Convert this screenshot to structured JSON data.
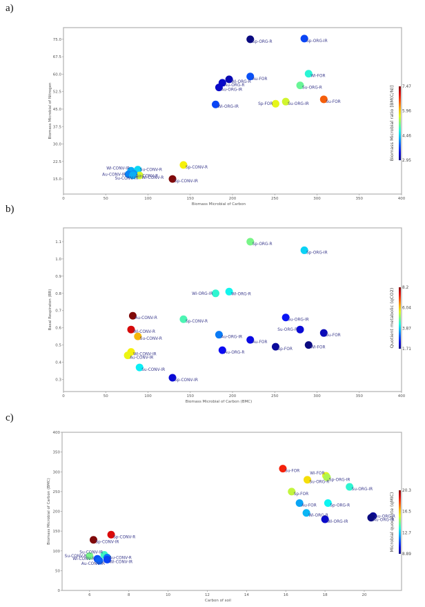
{
  "panels": [
    {
      "label": "a)"
    },
    {
      "label": "b)"
    },
    {
      "label": "c)"
    }
  ],
  "chart_data": [
    {
      "type": "scatter",
      "title": "",
      "xlabel": "Biomass Microbial of Carbon",
      "ylabel": "Biomass Microbial of Nitrogen",
      "xlim": [
        0,
        400
      ],
      "ylim": [
        8.5,
        80
      ],
      "xticks": [
        0,
        50,
        100,
        150,
        200,
        250,
        300,
        350,
        400
      ],
      "yticks": [
        15.0,
        22.5,
        30.0,
        37.5,
        45.0,
        52.5,
        60.0,
        67.5,
        75.0
      ],
      "ytick_labels": [
        "15.0",
        "22.5",
        "30.0",
        "37.5",
        "45.0",
        "52.5",
        "60.0",
        "67.5",
        "75.0"
      ],
      "grid": false,
      "colorbar": {
        "title": "Biomass Microbial ratio [BM(C/N)]",
        "min": 2.95,
        "max": 7.47,
        "ticks": [
          "2.95",
          "4.46",
          "5.96",
          "7.47"
        ],
        "colormap": "jet"
      },
      "points": [
        {
          "label": "Sp-ORG-R",
          "x": 221,
          "y": 75.0,
          "c": 2.95,
          "pos": "right-below"
        },
        {
          "label": "Sp-ORG-IR",
          "x": 285,
          "y": 75.3,
          "c": 3.8,
          "pos": "right-below"
        },
        {
          "label": "Wi-FOR",
          "x": 290,
          "y": 60.2,
          "c": 4.8,
          "pos": "right-below"
        },
        {
          "label": "Au-FOR",
          "x": 221,
          "y": 59.0,
          "c": 3.85,
          "pos": "right-below"
        },
        {
          "label": "Wi-ORG-R",
          "x": 196,
          "y": 57.8,
          "c": 3.2,
          "pos": "right-below"
        },
        {
          "label": "Au-ORG-R",
          "x": 188,
          "y": 56.3,
          "c": 3.3,
          "pos": "right-below"
        },
        {
          "label": "Au-ORG-IR",
          "x": 184,
          "y": 54.3,
          "c": 3.3,
          "pos": "right-below"
        },
        {
          "label": "Su-ORG-R",
          "x": 280,
          "y": 55.2,
          "c": 5.1,
          "pos": "right-below"
        },
        {
          "label": "Su-FOR",
          "x": 308,
          "y": 49.2,
          "c": 6.5,
          "pos": "right-below"
        },
        {
          "label": "Su-ORG-IR",
          "x": 263,
          "y": 48.2,
          "c": 5.6,
          "pos": "right-below"
        },
        {
          "label": "Sp-FOR",
          "x": 251,
          "y": 47.3,
          "c": 5.7,
          "pos": "left"
        },
        {
          "label": "Wi-ORG-IR",
          "x": 180,
          "y": 47.0,
          "c": 3.8,
          "pos": "right-below"
        },
        {
          "label": "Sp-CONV-R",
          "x": 142,
          "y": 21.0,
          "c": 5.8,
          "pos": "right-below"
        },
        {
          "label": "Wi-CONV-IR",
          "x": 80,
          "y": 18.5,
          "c": 4.3,
          "pos": "left-above"
        },
        {
          "label": "Su-CONV-R",
          "x": 88,
          "y": 19.0,
          "c": 4.5,
          "pos": "right"
        },
        {
          "label": "Au-CONV-IR",
          "x": 77,
          "y": 17.0,
          "c": 4.1,
          "pos": "left"
        },
        {
          "label": "Wi-CONV-R",
          "x": 90,
          "y": 16.5,
          "c": 5.6,
          "pos": "right-below"
        },
        {
          "label": "Au-CONV-R",
          "x": 83,
          "y": 17.3,
          "c": 4.2,
          "pos": "right-below"
        },
        {
          "label": "Su-CONV-IR",
          "x": 82,
          "y": 16.5,
          "c": 4.3,
          "pos": "left-below"
        },
        {
          "label": "Sp-CONV-IR",
          "x": 129,
          "y": 15.0,
          "c": 7.47,
          "pos": "right-below"
        }
      ]
    },
    {
      "type": "scatter",
      "title": "",
      "xlabel": "Biomass Microbial of Carbon (BMC)",
      "ylabel": "Basal Respiraton (BR)",
      "xlim": [
        0,
        400
      ],
      "ylim": [
        0.23,
        1.18
      ],
      "xticks": [
        0,
        50,
        100,
        150,
        200,
        250,
        300,
        350,
        400
      ],
      "yticks": [
        0.3,
        0.4,
        0.5,
        0.6,
        0.7,
        0.8,
        0.9,
        1.0,
        1.1
      ],
      "ytick_labels": [
        "0.3",
        "0.4",
        "0.5",
        "0.6",
        "0.7",
        "0.8",
        "0.9",
        "1.0",
        "1.1"
      ],
      "grid": false,
      "colorbar": {
        "title": "Quotient metabolic (qCO2)",
        "min": 1.71,
        "max": 8.2,
        "ticks": [
          "1.71",
          "3.87",
          "6.04",
          "8.2"
        ],
        "colormap": "jet"
      },
      "points": [
        {
          "label": "Sp-ORG-R",
          "x": 221,
          "y": 1.1,
          "c": 4.9,
          "pos": "right-below"
        },
        {
          "label": "Sp-ORG-IR",
          "x": 285,
          "y": 1.05,
          "c": 3.9,
          "pos": "right-below"
        },
        {
          "label": "Wi-ORG-IR",
          "x": 180,
          "y": 0.8,
          "c": 4.4,
          "pos": "left"
        },
        {
          "label": "Wi-ORG-R",
          "x": 196,
          "y": 0.81,
          "c": 4.2,
          "pos": "right-below"
        },
        {
          "label": "Au-CONV-R",
          "x": 82,
          "y": 0.67,
          "c": 8.2,
          "pos": "right-below"
        },
        {
          "label": "Sp-CONV-R",
          "x": 142,
          "y": 0.65,
          "c": 4.6,
          "pos": "right-below"
        },
        {
          "label": "Su-ORG-IR",
          "x": 263,
          "y": 0.66,
          "c": 2.6,
          "pos": "right-below"
        },
        {
          "label": "Wi-CONV-R",
          "x": 80,
          "y": 0.59,
          "c": 7.6,
          "pos": "right-below"
        },
        {
          "label": "Su-ORG-R",
          "x": 280,
          "y": 0.59,
          "c": 2.3,
          "pos": "left"
        },
        {
          "label": "Su-FOR",
          "x": 308,
          "y": 0.57,
          "c": 2.1,
          "pos": "right-below"
        },
        {
          "label": "Au-ORG-IR",
          "x": 184,
          "y": 0.56,
          "c": 3.3,
          "pos": "right-below"
        },
        {
          "label": "Su-CONV-R",
          "x": 88,
          "y": 0.55,
          "c": 6.2,
          "pos": "right-below"
        },
        {
          "label": "Au-FOR",
          "x": 221,
          "y": 0.53,
          "c": 2.4,
          "pos": "right-below"
        },
        {
          "label": "Wi-FOR",
          "x": 290,
          "y": 0.5,
          "c": 1.71,
          "pos": "right-below"
        },
        {
          "label": "Sp-FOR",
          "x": 251,
          "y": 0.49,
          "c": 1.9,
          "pos": "right-below"
        },
        {
          "label": "Au-ORG-R",
          "x": 188,
          "y": 0.47,
          "c": 2.5,
          "pos": "right-below"
        },
        {
          "label": "Wi-CONV-IR",
          "x": 80,
          "y": 0.46,
          "c": 5.8,
          "pos": "right-below"
        },
        {
          "label": "Au-CONV-IR",
          "x": 76,
          "y": 0.44,
          "c": 5.7,
          "pos": "right-below"
        },
        {
          "label": "Su-CONV-IR",
          "x": 90,
          "y": 0.37,
          "c": 4.1,
          "pos": "right-below"
        },
        {
          "label": "Sp-CONV-IR",
          "x": 129,
          "y": 0.31,
          "c": 2.3,
          "pos": "right-below"
        }
      ]
    },
    {
      "type": "scatter",
      "title": "",
      "xlabel": "Carbon of soil",
      "ylabel": "Biomass Microbial of Carbon (BMC)",
      "xlim": [
        4.6,
        21.9
      ],
      "ylim": [
        0,
        400
      ],
      "xticks": [
        6,
        8,
        10,
        12,
        14,
        16,
        18,
        20
      ],
      "yticks": [
        0,
        50,
        100,
        150,
        200,
        250,
        300,
        350,
        400
      ],
      "ytick_labels": [
        "0",
        "50",
        "100",
        "150",
        "200",
        "250",
        "300",
        "350",
        "400"
      ],
      "grid": false,
      "colorbar": {
        "title": "Microbial quociente (qMIC)",
        "min": 8.89,
        "max": 20.3,
        "ticks": [
          "8.89",
          "12.7",
          "16.5",
          "20.3"
        ],
        "colormap": "jet"
      },
      "points": [
        {
          "label": "Su-FOR",
          "x": 15.85,
          "y": 308,
          "c": 18.6,
          "pos": "right-below"
        },
        {
          "label": "Wi-FOR",
          "x": 18.05,
          "y": 290,
          "c": 15.8,
          "pos": "left-above"
        },
        {
          "label": "Sp-ORG-IR",
          "x": 18.1,
          "y": 286,
          "c": 15.2,
          "pos": "right-below"
        },
        {
          "label": "Su-ORG-R",
          "x": 17.1,
          "y": 280,
          "c": 16.3,
          "pos": "right-below"
        },
        {
          "label": "Su-ORG-IR",
          "x": 19.25,
          "y": 262,
          "c": 13.6,
          "pos": "right-below"
        },
        {
          "label": "Sp-FOR",
          "x": 16.3,
          "y": 250,
          "c": 15.4,
          "pos": "right-below"
        },
        {
          "label": "Au-FOR",
          "x": 16.7,
          "y": 221,
          "c": 12.2,
          "pos": "right-below"
        },
        {
          "label": "Sp-ORG-R",
          "x": 18.15,
          "y": 221,
          "c": 13.2,
          "pos": "right-below"
        },
        {
          "label": "Wi-ORG-R",
          "x": 17.05,
          "y": 196,
          "c": 12.4,
          "pos": "right-below"
        },
        {
          "label": "Wi-ORG-IR",
          "x": 18.0,
          "y": 180,
          "c": 9.8,
          "pos": "right-below"
        },
        {
          "label": "Au-ORG-R",
          "x": 20.45,
          "y": 188,
          "c": 9.2,
          "pos": "right"
        },
        {
          "label": "Au-ORG-IR",
          "x": 20.35,
          "y": 184,
          "c": 8.89,
          "pos": "right-below"
        },
        {
          "label": "Sp-CONV-R",
          "x": 7.1,
          "y": 141,
          "c": 19.2,
          "pos": "right-below"
        },
        {
          "label": "Sp-CONV-IR",
          "x": 6.2,
          "y": 128,
          "c": 20.3,
          "pos": "right-below"
        },
        {
          "label": "Su-CONV-IR",
          "x": 6.75,
          "y": 90,
          "c": 13.8,
          "pos": "left-above"
        },
        {
          "label": "Su-CONV-R",
          "x": 6.0,
          "y": 87,
          "c": 14.5,
          "pos": "left"
        },
        {
          "label": "Au-CONV-R",
          "x": 6.9,
          "y": 83,
          "c": 11.6,
          "pos": "right"
        },
        {
          "label": "Wi-CONV-R",
          "x": 6.4,
          "y": 80,
          "c": 11.2,
          "pos": "left"
        },
        {
          "label": "Wi-CONV-IR",
          "x": 6.9,
          "y": 78,
          "c": 11.0,
          "pos": "right-below"
        },
        {
          "label": "Au-CONV-IR",
          "x": 6.5,
          "y": 75,
          "c": 11.4,
          "pos": "left-below"
        }
      ]
    }
  ]
}
